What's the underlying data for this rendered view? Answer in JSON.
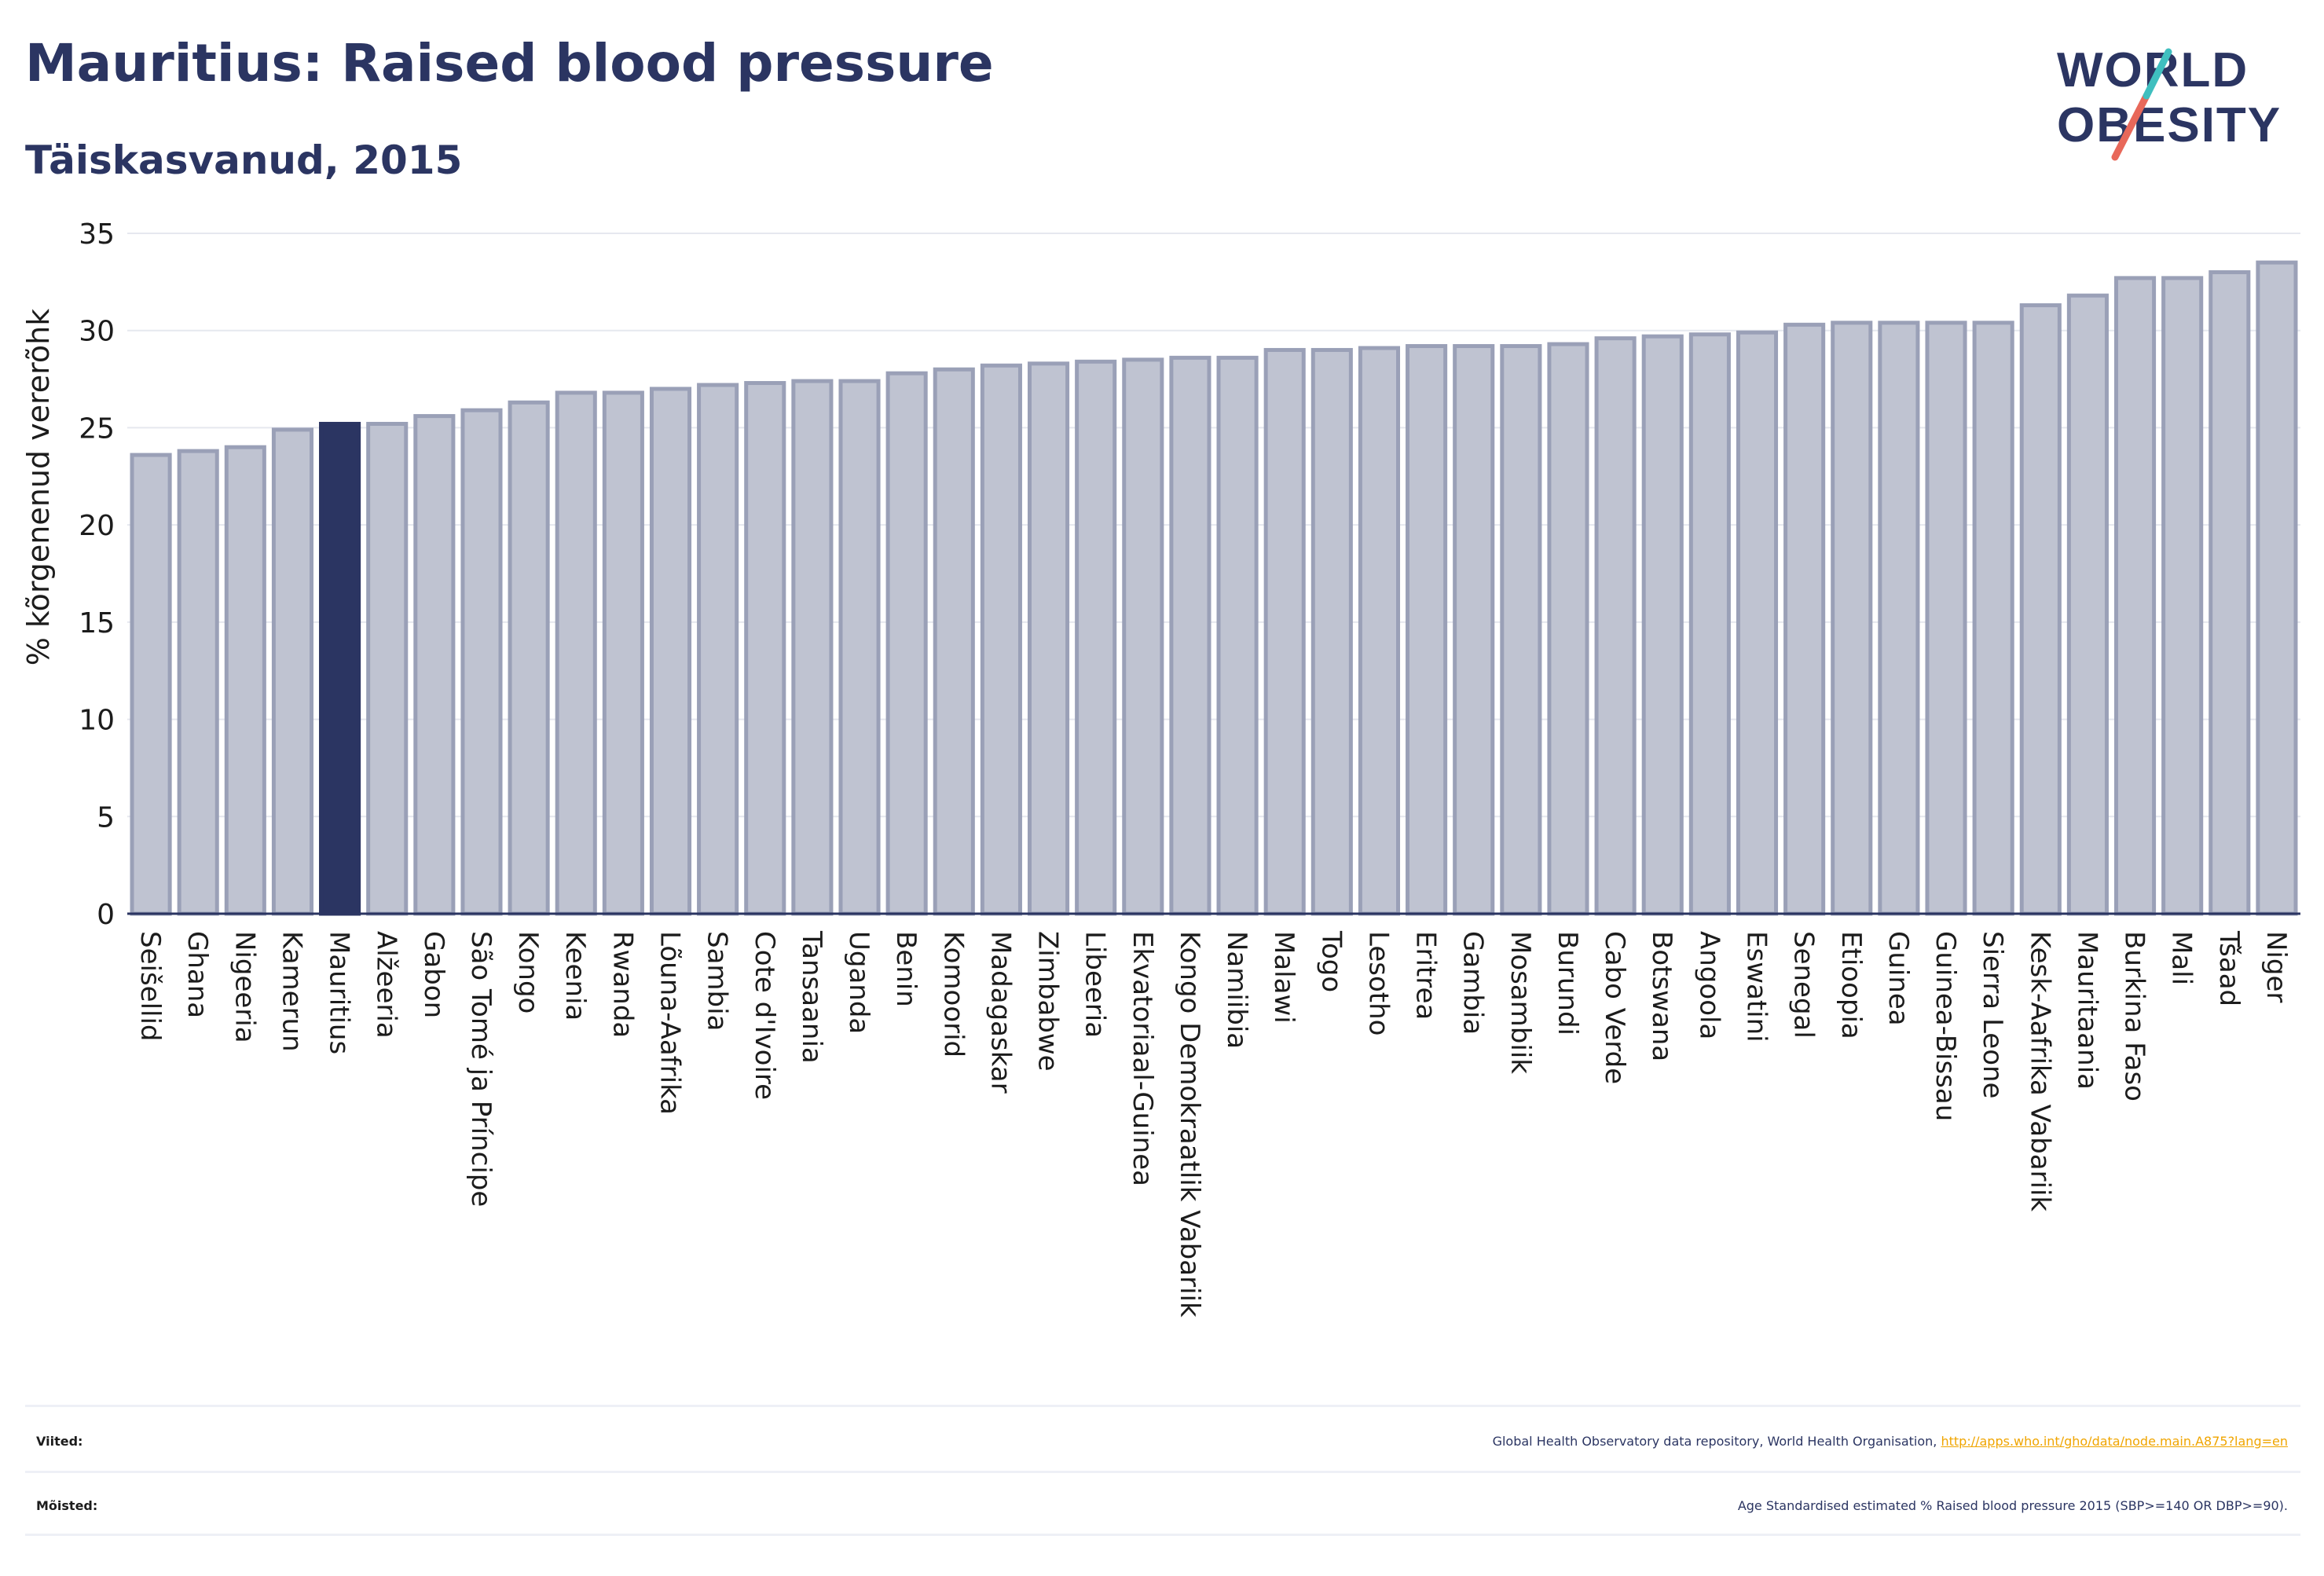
{
  "header": {
    "title": "Mauritius: Raised blood pressure",
    "subtitle": "Täiskasvanud, 2015"
  },
  "logo": {
    "line1": "WORLD",
    "line2": "OBESITY"
  },
  "colors": {
    "bar": "#bfc3d1",
    "bar_border": "#9aa0b7",
    "highlight": "#2b3562",
    "grid": "#e6e8ef",
    "axis": "#2b3562",
    "text": "#2b3562",
    "link": "#f0a500"
  },
  "chart_data": {
    "type": "bar",
    "title": "Mauritius: Raised blood pressure",
    "subtitle": "Täiskasvanud, 2015",
    "xlabel": "",
    "ylabel": "% kõrgenenud vererõhk",
    "ylim": [
      0,
      35
    ],
    "yticks": [
      0,
      5,
      10,
      15,
      20,
      25,
      30,
      35
    ],
    "grid": true,
    "highlight": "Mauritius",
    "categories": [
      "Seišellid",
      "Ghana",
      "Nigeeria",
      "Kamerun",
      "Mauritius",
      "Alžeeria",
      "Gabon",
      "São Tomé ja Príncipe",
      "Kongo",
      "Keenia",
      "Rwanda",
      "Lõuna-Aafrika",
      "Sambia",
      "Cote d'Ivoire",
      "Tansaania",
      "Uganda",
      "Benin",
      "Komoorid",
      "Madagaskar",
      "Zimbabwe",
      "Libeeria",
      "Ekvatoriaal-Guinea",
      "Kongo Demokraatlik Vabariik",
      "Namiibia",
      "Malawi",
      "Togo",
      "Lesotho",
      "Eritrea",
      "Gambia",
      "Mosambiik",
      "Burundi",
      "Cabo Verde",
      "Botswana",
      "Angoola",
      "Eswatini",
      "Senegal",
      "Etioopia",
      "Guinea",
      "Guinea-Bissau",
      "Sierra Leone",
      "Kesk-Aafrika Vabariik",
      "Mauritaania",
      "Burkina Faso",
      "Mali",
      "Tšaad",
      "Niger"
    ],
    "values": [
      23.6,
      23.8,
      24.0,
      24.9,
      25.2,
      25.2,
      25.6,
      25.9,
      26.3,
      26.8,
      26.8,
      27.0,
      27.2,
      27.3,
      27.4,
      27.4,
      27.8,
      28.0,
      28.2,
      28.3,
      28.4,
      28.5,
      28.6,
      28.6,
      29.0,
      29.0,
      29.1,
      29.2,
      29.2,
      29.2,
      29.3,
      29.6,
      29.7,
      29.8,
      29.9,
      30.3,
      30.4,
      30.4,
      30.4,
      30.4,
      31.3,
      31.8,
      32.7,
      32.7,
      33.0,
      33.5
    ]
  },
  "footer": {
    "references_label": "Viited:",
    "references_text": "Global Health Observatory data repository, World Health Organisation,",
    "references_link": "http://apps.who.int/gho/data/node.main.A875?lang=en",
    "definitions_label": "Mõisted:",
    "definitions_text": "Age Standardised estimated % Raised blood pressure 2015 (SBP>=140 OR DBP>=90)."
  }
}
